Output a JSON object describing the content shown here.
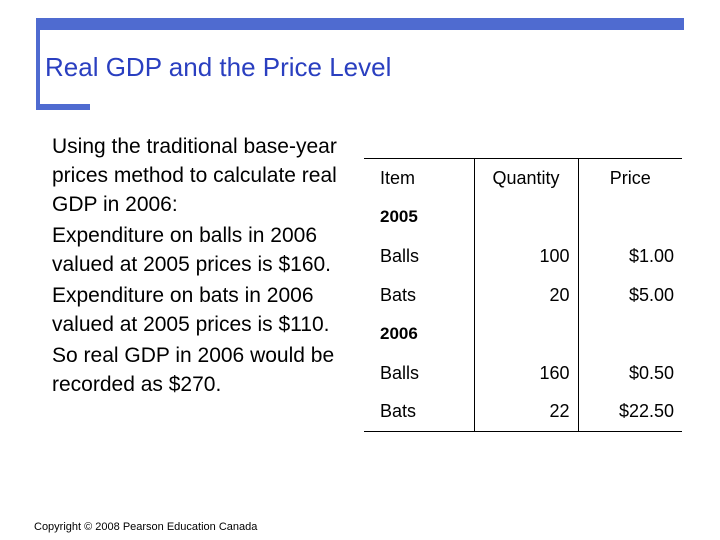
{
  "slide": {
    "title": "Real GDP and the Price Level",
    "paragraphs": [
      "Using the traditional base-year prices method to calculate real GDP in 2006:",
      "Expenditure on balls in 2006 valued at 2005 prices is $160.",
      "Expenditure on bats in 2006 valued at 2005 prices is $110.",
      "So real GDP in 2006 would be recorded as $270."
    ],
    "copyright": "Copyright © 2008 Pearson Education Canada"
  },
  "table": {
    "headers": [
      "Item",
      "Quantity",
      "Price"
    ],
    "sections": [
      {
        "year": "2005",
        "rows": [
          {
            "item": "Balls",
            "quantity": "100",
            "price": "$1.00"
          },
          {
            "item": "Bats",
            "quantity": "20",
            "price": "$5.00"
          }
        ]
      },
      {
        "year": "2006",
        "rows": [
          {
            "item": "Balls",
            "quantity": "160",
            "price": "$0.50"
          },
          {
            "item": "Bats",
            "quantity": "22",
            "price": "$22.50"
          }
        ]
      }
    ]
  },
  "colors": {
    "accent": "#4f6bd0",
    "title": "#2a3fc0"
  }
}
